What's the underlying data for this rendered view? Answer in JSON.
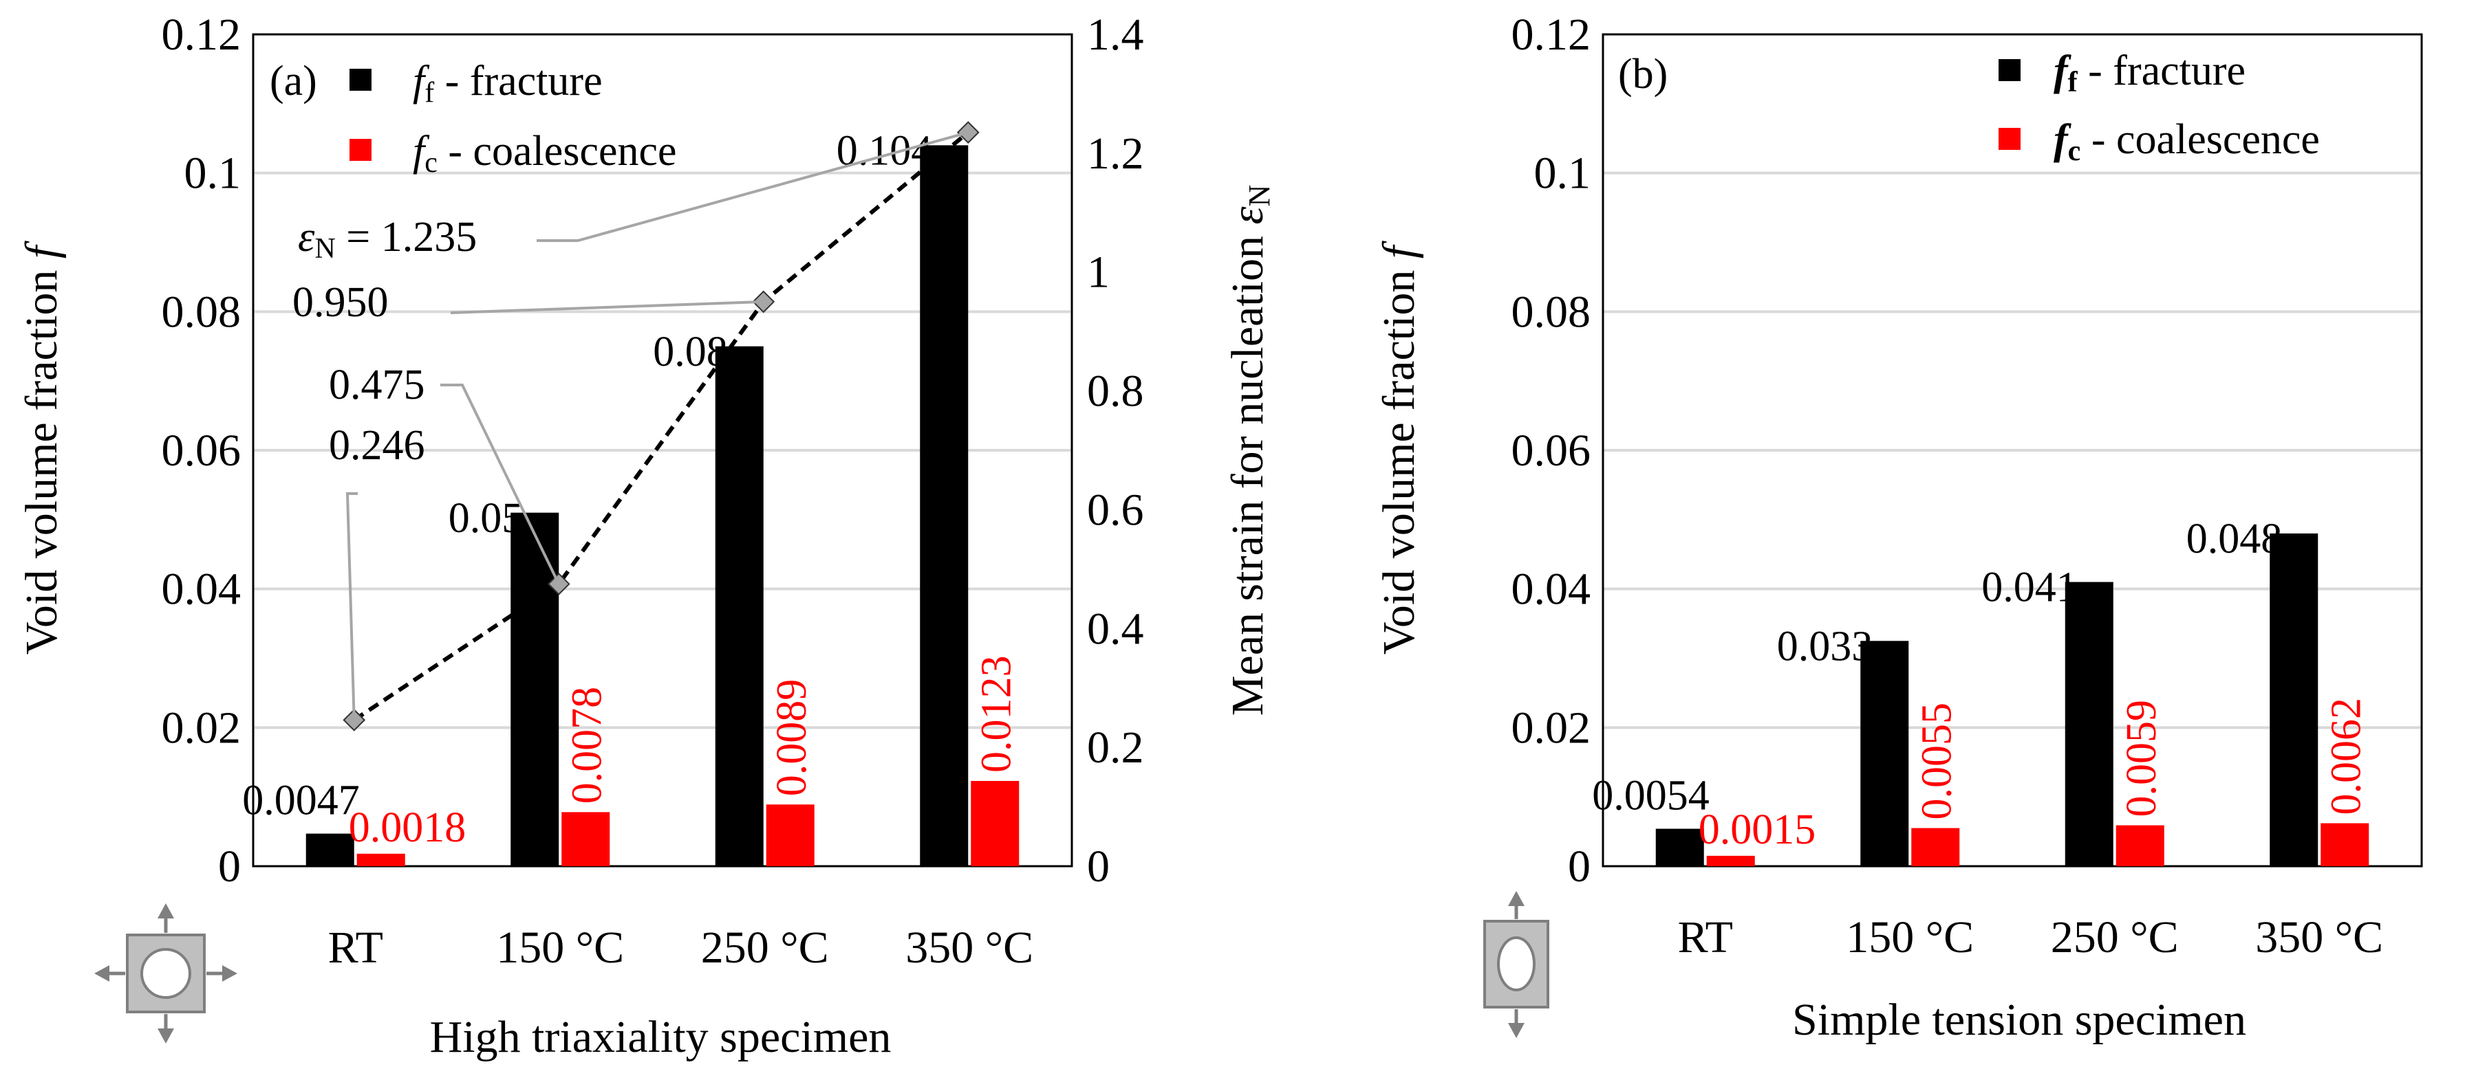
{
  "chart_data": [
    {
      "panel": "(a)",
      "type": "bar",
      "categories": [
        "RT",
        "150 °C",
        "250 °C",
        "350 °C"
      ],
      "series": [
        {
          "name": "f_f - fracture",
          "color": "#000000",
          "values": [
            0.0047,
            0.051,
            0.075,
            0.104
          ],
          "labels": [
            "0.0047",
            "0.05",
            "0.08",
            "0.104"
          ]
        },
        {
          "name": "f_c - coalescence",
          "color": "#ff0000",
          "values": [
            0.0018,
            0.0078,
            0.0089,
            0.0123
          ],
          "labels": [
            "0.0018",
            "0.0078",
            "0.0089",
            "0.0123"
          ]
        }
      ],
      "line_series": {
        "name": "Mean strain for nucleation εN",
        "axis": "right",
        "style": "dashed",
        "marker": "diamond",
        "marker_color": "#a6a6a6",
        "values": [
          0.246,
          0.475,
          0.95,
          1.235
        ],
        "labels": [
          "0.246",
          "0.475",
          "0.950",
          "1.235"
        ],
        "last_label_prefix": "ε",
        "last_label_sub": "N",
        "last_label_eq": " = "
      },
      "legend": [
        {
          "italic": "f",
          "sub": "f",
          "text": " - fracture",
          "color": "#000000"
        },
        {
          "italic": "f",
          "sub": "c",
          "text": " - coalescence",
          "color": "#ff0000"
        }
      ],
      "ylabel_left": {
        "text": "Void volume  fraction ",
        "italic": "f"
      },
      "ylabel_right": {
        "text": "Mean strain for nucleation ",
        "italic": "ε",
        "sub": "N"
      },
      "xlabel": "High triaxiality  specimen",
      "ylim": [
        0,
        0.12
      ],
      "yticks": [
        "0",
        "0.02",
        "0.04",
        "0.06",
        "0.08",
        "0.1",
        "0.12"
      ],
      "ylim_right": [
        0,
        1.4
      ],
      "yticks_right": [
        "0",
        "0.2",
        "0.4",
        "0.6",
        "0.8",
        "1",
        "1.2",
        "1.4"
      ],
      "grid": true,
      "icon": "plate-with-hole-biaxial-arrows-icon"
    },
    {
      "panel": "(b)",
      "type": "bar",
      "categories": [
        "RT",
        "150 °C",
        "250 °C",
        "350 °C"
      ],
      "series": [
        {
          "name": "f_f - fracture",
          "color": "#000000",
          "values": [
            0.0054,
            0.0325,
            0.041,
            0.048
          ],
          "labels": [
            "0.0054",
            "0.033",
            "0.041",
            "0.048"
          ]
        },
        {
          "name": "f_c - coalescence",
          "color": "#ff0000",
          "values": [
            0.0015,
            0.0055,
            0.0059,
            0.0062
          ],
          "labels": [
            "0.0015",
            "0.0055",
            "0.0059",
            "0.0062"
          ]
        }
      ],
      "legend": [
        {
          "italic": "f",
          "sub": "f",
          "text": " - fracture",
          "color": "#000000",
          "bold": true
        },
        {
          "italic": "f",
          "sub": "c",
          "text": " - coalescence",
          "color": "#ff0000",
          "bold": true
        }
      ],
      "ylabel_left": {
        "text": "Void volume fraction ",
        "italic": "f"
      },
      "xlabel": "Simple tension specimen",
      "ylim": [
        0,
        0.12
      ],
      "yticks": [
        "0",
        "0.02",
        "0.04",
        "0.06",
        "0.08",
        "0.1",
        "0.12"
      ],
      "grid": true,
      "icon": "plate-with-elliptical-hole-uniaxial-arrows-icon"
    }
  ]
}
